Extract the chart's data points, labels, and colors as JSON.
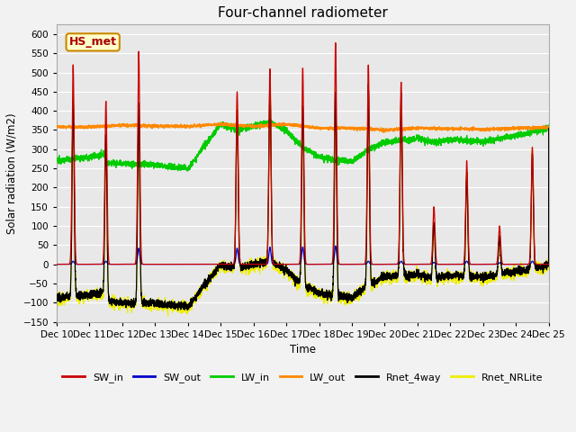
{
  "title": "Four-channel radiometer",
  "ylabel": "Solar radiation (W/m2)",
  "xlabel": "Time",
  "ylim": [
    -150,
    625
  ],
  "yticks": [
    -150,
    -100,
    -50,
    0,
    50,
    100,
    150,
    200,
    250,
    300,
    350,
    400,
    450,
    500,
    550,
    600
  ],
  "n_days": 15,
  "n_per_day": 288,
  "start_day": 10,
  "colors": {
    "SW_in": "#cc0000",
    "SW_out": "#0000cc",
    "LW_in": "#00cc00",
    "LW_out": "#ff8800",
    "Rnet_4way": "#000000",
    "Rnet_NRLite": "#eeee00"
  },
  "annotation_text": "HS_met",
  "annotation_facecolor": "#ffffcc",
  "annotation_edgecolor": "#cc8800",
  "annotation_textcolor": "#aa0000",
  "plot_bg": "#e8e8e8",
  "fig_bg": "#f2f2f2",
  "grid_color": "#ffffff",
  "legend_labels": [
    "SW_in",
    "SW_out",
    "LW_in",
    "LW_out",
    "Rnet_4way",
    "Rnet_NRLite"
  ]
}
